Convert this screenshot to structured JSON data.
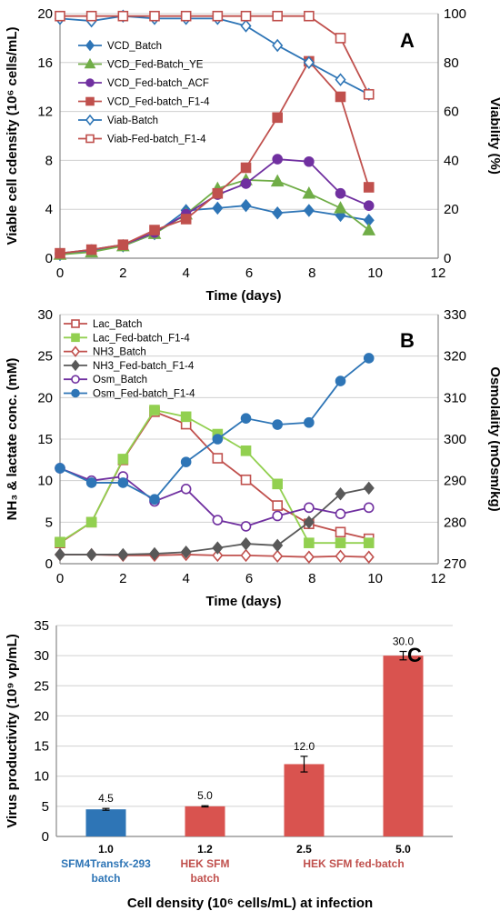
{
  "chart_data": [
    {
      "panel": "A",
      "type": "line",
      "xlabel": "Time (days)",
      "ylabel": "Viable cell cdensity (10⁶ cells/mL)",
      "y2label": "Viability (%)",
      "xlim": [
        0,
        12
      ],
      "ylim": [
        0,
        20
      ],
      "y2lim": [
        0,
        100
      ],
      "xticks": [
        0,
        2,
        4,
        6,
        8,
        10,
        12
      ],
      "yticks": [
        0,
        4,
        8,
        12,
        16,
        20
      ],
      "y2ticks": [
        0,
        20,
        40,
        60,
        80,
        100
      ],
      "grid": true,
      "legend_position": "top-left",
      "series": [
        {
          "name": "VCD_Batch",
          "axis": "left",
          "color": "#2E75B6",
          "marker": "diamond",
          "filled": true,
          "x": [
            0,
            1,
            2,
            3,
            4,
            5,
            5.9,
            6.9,
            7.9,
            8.9,
            9.8
          ],
          "y": [
            0.3,
            0.6,
            1.0,
            2.0,
            3.9,
            4.1,
            4.3,
            3.7,
            3.9,
            3.5,
            3.1
          ]
        },
        {
          "name": "VCD_Fed-Batch_YE",
          "axis": "left",
          "color": "#70AD47",
          "marker": "triangle",
          "filled": true,
          "x": [
            0,
            1,
            2,
            3,
            4,
            5,
            5.9,
            6.9,
            7.9,
            8.9,
            9.8
          ],
          "y": [
            0.3,
            0.5,
            1.0,
            2.0,
            3.6,
            5.7,
            6.4,
            6.3,
            5.3,
            4.1,
            2.3
          ]
        },
        {
          "name": "VCD_Fed-batch_ACF",
          "axis": "left",
          "color": "#7030A0",
          "marker": "circle",
          "filled": true,
          "x": [
            0,
            1,
            2,
            3,
            4,
            5,
            5.9,
            6.9,
            7.9,
            8.9,
            9.8
          ],
          "y": [
            0.4,
            0.7,
            1.1,
            2.1,
            3.6,
            5.2,
            6.1,
            8.1,
            7.9,
            5.3,
            4.3
          ]
        },
        {
          "name": "VCD_Fed-batch_F1-4",
          "axis": "left",
          "color": "#C0504D",
          "marker": "square",
          "filled": true,
          "x": [
            0,
            1,
            2,
            3,
            4,
            5,
            5.9,
            6.9,
            7.9,
            8.9,
            9.8
          ],
          "y": [
            0.4,
            0.7,
            1.1,
            2.3,
            3.2,
            5.3,
            7.4,
            11.5,
            16.1,
            13.2,
            5.8
          ]
        },
        {
          "name": "Viab-Batch",
          "axis": "right",
          "color": "#2E75B6",
          "marker": "diamond",
          "filled": false,
          "x": [
            0,
            1,
            2,
            3,
            4,
            5,
            5.9,
            6.9,
            7.9,
            8.9,
            9.8
          ],
          "y": [
            98,
            97,
            99,
            98,
            98,
            98,
            95,
            87,
            80,
            73,
            67
          ]
        },
        {
          "name": "Viab-Fed-batch_F1-4",
          "axis": "right",
          "color": "#C0504D",
          "marker": "square",
          "filled": false,
          "x": [
            0,
            1,
            2,
            3,
            4,
            5,
            5.9,
            6.9,
            7.9,
            8.9,
            9.8
          ],
          "y": [
            99,
            99,
            99,
            99,
            99,
            99,
            99,
            99,
            99,
            90,
            67
          ]
        }
      ]
    },
    {
      "panel": "B",
      "type": "line",
      "xlabel": "Time (days)",
      "ylabel": "NH₃ & lactate conc. (mM)",
      "y2label": "Osmolality (mOsm/kg)",
      "xlim": [
        0,
        12
      ],
      "ylim": [
        0,
        30
      ],
      "y2lim": [
        270,
        330
      ],
      "xticks": [
        0,
        2,
        4,
        6,
        8,
        10,
        12
      ],
      "yticks": [
        0,
        5,
        10,
        15,
        20,
        25,
        30
      ],
      "y2ticks": [
        270,
        280,
        290,
        300,
        310,
        320,
        330
      ],
      "grid": true,
      "legend_position": "top-left",
      "series": [
        {
          "name": "Lac_Batch",
          "axis": "left",
          "color": "#C0504D",
          "marker": "square",
          "filled": false,
          "x": [
            0,
            1,
            2,
            3,
            4,
            5,
            5.9,
            6.9,
            7.9,
            8.9,
            9.8
          ],
          "y": [
            2.5,
            5.0,
            12.5,
            18.3,
            16.8,
            12.7,
            10.1,
            7.0,
            4.8,
            3.8,
            3.0
          ]
        },
        {
          "name": "Lac_Fed-batch_F1-4",
          "axis": "left",
          "color": "#92D050",
          "marker": "square",
          "filled": true,
          "x": [
            0,
            1,
            2,
            3,
            4,
            5,
            5.9,
            6.9,
            7.9,
            8.9,
            9.8
          ],
          "y": [
            2.6,
            5.0,
            12.6,
            18.5,
            17.7,
            15.6,
            13.6,
            9.6,
            2.5,
            2.5,
            2.5
          ]
        },
        {
          "name": "NH3_Batch",
          "axis": "left",
          "color": "#C0504D",
          "marker": "diamond",
          "filled": false,
          "x": [
            0,
            1,
            2,
            3,
            4,
            5,
            5.9,
            6.9,
            7.9,
            8.9,
            9.8
          ],
          "y": [
            1.1,
            1.1,
            1.0,
            1.0,
            1.1,
            1.0,
            1.0,
            0.9,
            0.8,
            0.9,
            0.8
          ]
        },
        {
          "name": "NH3_Fed-batch_F1-4",
          "axis": "left",
          "color": "#595959",
          "marker": "diamond",
          "filled": true,
          "x": [
            0,
            1,
            2,
            3,
            4,
            5,
            5.9,
            6.9,
            7.9,
            8.9,
            9.8
          ],
          "y": [
            1.1,
            1.1,
            1.1,
            1.2,
            1.4,
            1.9,
            2.4,
            2.2,
            5.0,
            8.4,
            9.1
          ]
        },
        {
          "name": "Osm_Batch",
          "axis": "right",
          "color": "#7030A0",
          "marker": "circle",
          "filled": false,
          "x": [
            0,
            1,
            2,
            3,
            4,
            5,
            5.9,
            6.9,
            7.9,
            8.9,
            9.8
          ],
          "y": [
            293,
            290,
            291,
            285,
            288,
            280.5,
            279,
            281.5,
            283.5,
            282,
            283.5
          ]
        },
        {
          "name": "Osm_Fed-batch_F1-4",
          "axis": "right",
          "color": "#2E75B6",
          "marker": "circle",
          "filled": true,
          "x": [
            0,
            1,
            2,
            3,
            4,
            5,
            5.9,
            6.9,
            7.9,
            8.9,
            9.8
          ],
          "y": [
            293,
            289.5,
            289.5,
            285.5,
            294.5,
            300,
            305,
            303.5,
            304,
            314,
            319.5
          ]
        }
      ]
    },
    {
      "panel": "C",
      "type": "bar",
      "ylabel": "Virus productivity (10⁹ vp/mL)",
      "xlabel": "Cell density (10⁶ cells/mL) at infection",
      "ylim": [
        0,
        35
      ],
      "yticks": [
        0,
        5,
        10,
        15,
        20,
        25,
        30,
        35
      ],
      "grid": true,
      "categories": [
        "1.0",
        "1.2",
        "2.5",
        "5.0"
      ],
      "values": [
        4.5,
        5.0,
        12.0,
        30.0
      ],
      "errors": [
        0.15,
        0.1,
        1.3,
        0.7
      ],
      "value_labels": [
        "4.5",
        "5.0",
        "12.0",
        "30.0"
      ],
      "colors": [
        "#2E75B6",
        "#D9534F",
        "#D9534F",
        "#D9534F"
      ],
      "group_labels": [
        {
          "text": "SFM4Transfx-293",
          "color": "#2E75B6",
          "categories": [
            0
          ],
          "line": 1
        },
        {
          "text": "batch",
          "color": "#2E75B6",
          "categories": [
            0
          ],
          "line": 2
        },
        {
          "text": "HEK SFM",
          "color": "#C0504D",
          "categories": [
            1
          ],
          "line": 1
        },
        {
          "text": "batch",
          "color": "#C0504D",
          "categories": [
            1
          ],
          "line": 2
        },
        {
          "text": "HEK SFM fed-batch",
          "color": "#C0504D",
          "categories": [
            2,
            3
          ],
          "line": 1
        }
      ]
    }
  ]
}
